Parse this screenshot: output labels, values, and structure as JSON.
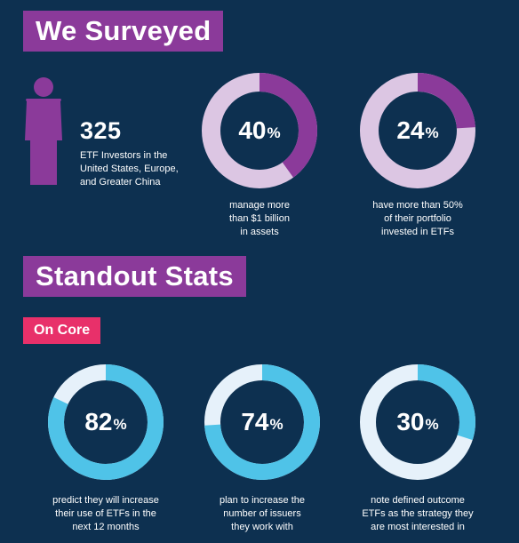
{
  "survey": {
    "title": "We Surveyed",
    "count": "325",
    "count_desc_lines": [
      "ETF Investors in the",
      "United States, Europe,",
      "and Greater China"
    ],
    "colors": {
      "banner": "#8b3a9a",
      "ring_fill": "#8b3a9a",
      "ring_track": "#dcc6e3"
    },
    "stats": [
      {
        "value": 40,
        "value_text": "40",
        "percent_symbol": "%",
        "caption_lines": [
          "manage more",
          "than $1 billion",
          "in assets"
        ]
      },
      {
        "value": 24,
        "value_text": "24",
        "percent_symbol": "%",
        "caption_lines": [
          "have more than 50%",
          "of their portfolio",
          "invested in ETFs"
        ]
      }
    ]
  },
  "standout": {
    "title": "Standout Stats",
    "tag": "On Core",
    "colors": {
      "tag": "#e8306a",
      "ring_fill": "#4fc3e8",
      "ring_track": "#e6f1fa"
    },
    "stats": [
      {
        "value": 82,
        "value_text": "82",
        "percent_symbol": "%",
        "caption_lines": [
          "predict they will increase",
          "their use of ETFs in the",
          "next 12 months"
        ]
      },
      {
        "value": 74,
        "value_text": "74",
        "percent_symbol": "%",
        "caption_lines": [
          "plan to increase the",
          "number of issuers",
          "they work with"
        ]
      },
      {
        "value": 30,
        "value_text": "30",
        "percent_symbol": "%",
        "caption_lines": [
          "note defined outcome",
          "ETFs as the strategy they",
          "are most interested in"
        ]
      }
    ]
  }
}
